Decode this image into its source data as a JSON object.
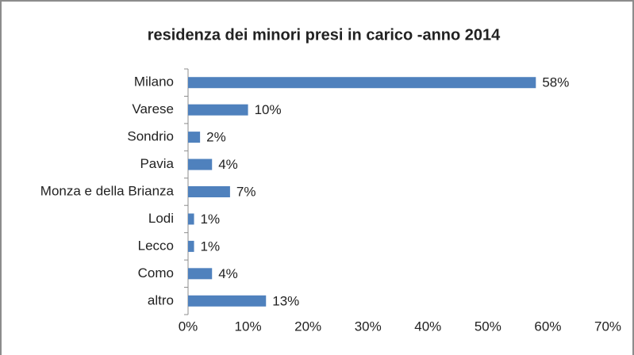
{
  "chart_data": {
    "type": "hbar",
    "title": "residenza dei minori presi in carico -anno 2014",
    "categories": [
      "Milano",
      "Varese",
      "Sondrio",
      "Pavia",
      "Monza e della Brianza",
      "Lodi",
      "Lecco",
      "Como",
      "altro"
    ],
    "values": [
      58,
      10,
      2,
      4,
      7,
      1,
      1,
      4,
      13
    ],
    "value_labels": [
      "58%",
      "10%",
      "2%",
      "4%",
      "7%",
      "1%",
      "1%",
      "4%",
      "13%"
    ],
    "color": "#4f81bd",
    "xlim": [
      0,
      70
    ],
    "xticks": [
      {
        "value": 0,
        "label": "0%"
      },
      {
        "value": 10,
        "label": "10%"
      },
      {
        "value": 20,
        "label": "20%"
      },
      {
        "value": 30,
        "label": "30%"
      },
      {
        "value": 40,
        "label": "40%"
      },
      {
        "value": 50,
        "label": "50%"
      },
      {
        "value": 60,
        "label": "60%"
      },
      {
        "value": 70,
        "label": "70%"
      }
    ],
    "grid": false
  }
}
